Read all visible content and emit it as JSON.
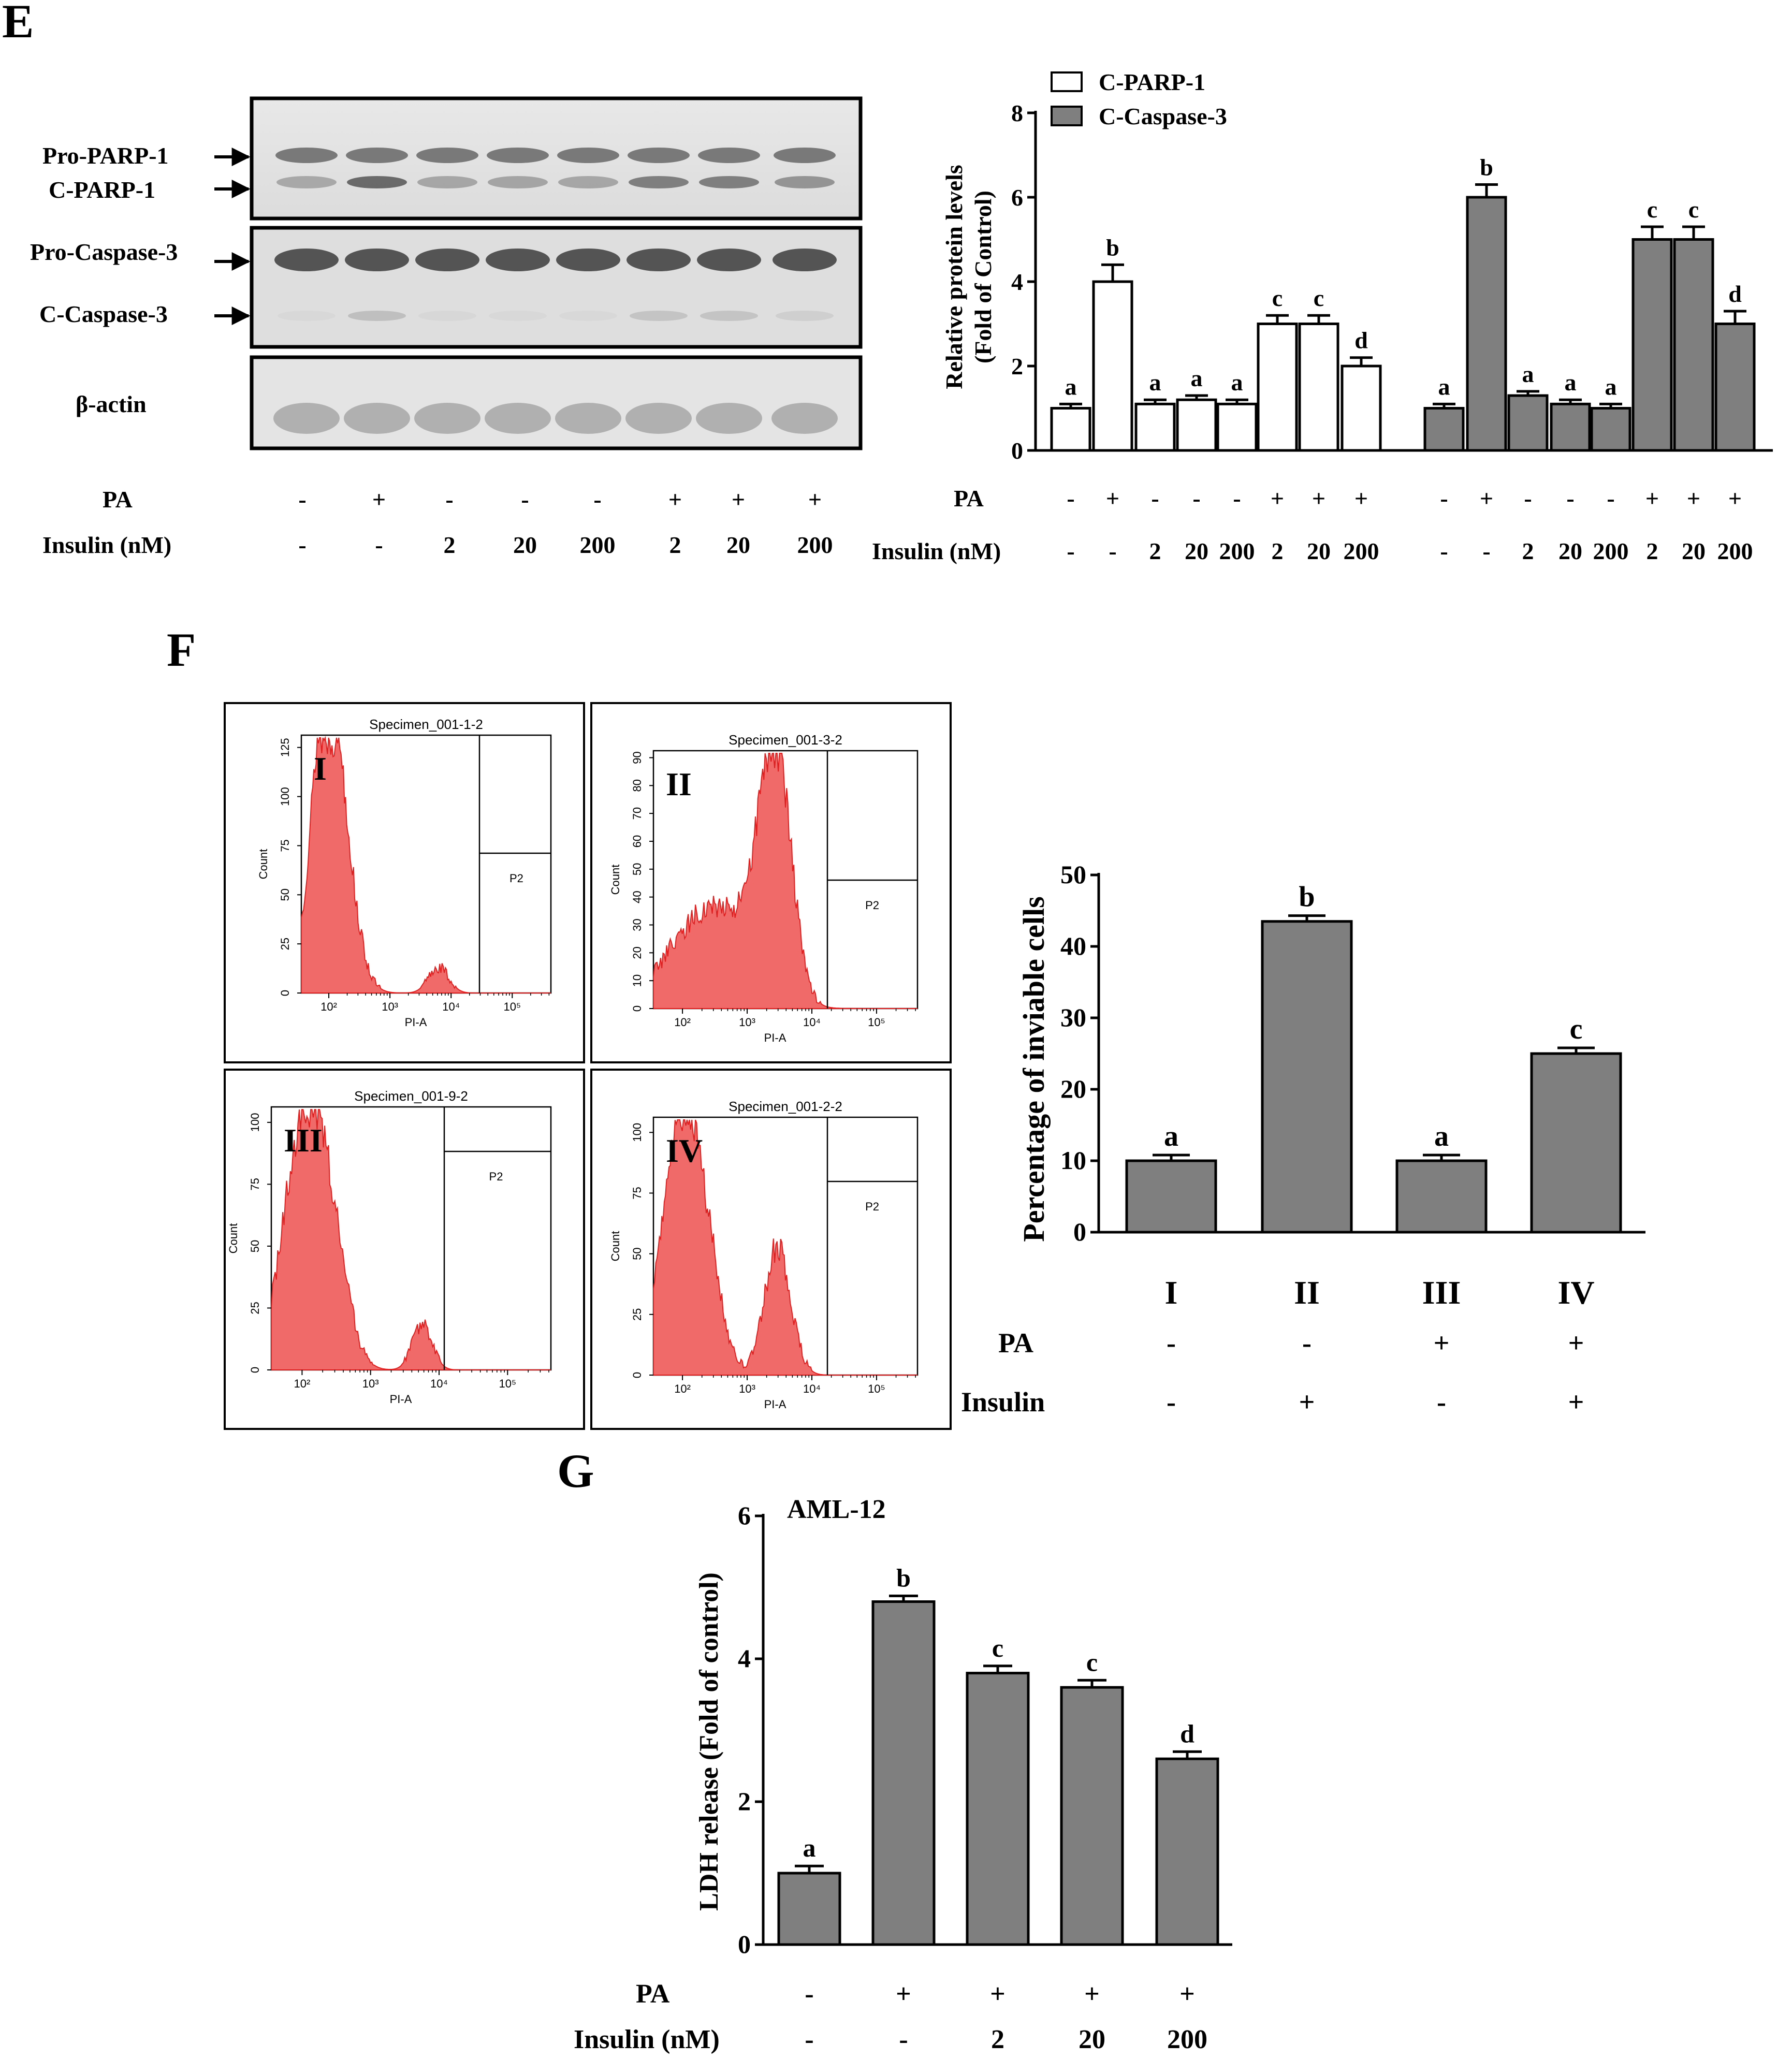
{
  "panels": {
    "E": {
      "letter": "E"
    },
    "F": {
      "letter": "F"
    },
    "G": {
      "letter": "G"
    }
  },
  "western_blot": {
    "band_labels": {
      "pro_parp": "Pro-PARP-1",
      "c_parp": "C-PARP-1",
      "pro_casp": "Pro-Caspase-3",
      "c_casp": "C-Caspase-3",
      "actin": "β-actin"
    },
    "row_labels": {
      "pa": "PA",
      "insulin": "Insulin (nM)"
    },
    "pa": [
      "-",
      "+",
      "-",
      "-",
      "-",
      "+",
      "+",
      "+"
    ],
    "insulin": [
      "-",
      "-",
      "2",
      "20",
      "200",
      "2",
      "20",
      "200"
    ]
  },
  "flow": {
    "plots": [
      {
        "title": "Specimen_001-1-2",
        "roman": "I",
        "gate": "P2",
        "xlabel": "PI-A",
        "ylabel": "Count",
        "yticks": [
          "0",
          "25",
          "50",
          "75",
          "100",
          "125"
        ],
        "xticks": [
          "10²",
          "10³",
          "10⁴",
          "10⁵"
        ]
      },
      {
        "title": "Specimen_001-3-2",
        "roman": "II",
        "gate": "P2",
        "xlabel": "PI-A",
        "ylabel": "Count",
        "yticks": [
          "0",
          "10",
          "20",
          "30",
          "40",
          "50",
          "60",
          "70",
          "80",
          "90"
        ],
        "xticks": [
          "10²",
          "10³",
          "10⁴",
          "10⁵"
        ]
      },
      {
        "title": "Specimen_001-9-2",
        "roman": "III",
        "gate": "P2",
        "xlabel": "PI-A",
        "ylabel": "Count",
        "yticks": [
          "0",
          "25",
          "50",
          "75",
          "100"
        ],
        "xticks": [
          "10²",
          "10³",
          "10⁴",
          "10⁵"
        ]
      },
      {
        "title": "Specimen_001-2-2",
        "roman": "IV",
        "gate": "P2",
        "xlabel": "PI-A",
        "ylabel": "Count",
        "yticks": [
          "0",
          "25",
          "50",
          "75",
          "100"
        ],
        "xticks": [
          "10²",
          "10³",
          "10⁴",
          "10⁵"
        ]
      }
    ]
  },
  "colors": {
    "bar_gray": "#7f7f7f",
    "bar_white": "#ffffff",
    "histogram_red": "#f06a6a",
    "histogram_line": "#e02020"
  },
  "chart_data": [
    {
      "id": "E-chart",
      "type": "bar",
      "ylabel": "Relative protein levels (Fold of Control)",
      "ylabel_lines": [
        "Relative protein levels",
        "(Fold of Control)"
      ],
      "ylim": [
        0,
        8
      ],
      "yticks": [
        0,
        2,
        4,
        6,
        8
      ],
      "row_labels": {
        "pa": "PA",
        "insulin": "Insulin (nM)"
      },
      "categories": [
        "-/-",
        "+/-",
        "-/2",
        "-/20",
        "-/200",
        "+/2",
        "+/20",
        "+/200"
      ],
      "pa": [
        "-",
        "+",
        "-",
        "-",
        "-",
        "+",
        "+",
        "+"
      ],
      "insulin": [
        "-",
        "-",
        "2",
        "20",
        "200",
        "2",
        "20",
        "200"
      ],
      "series": [
        {
          "name": "C-PARP-1",
          "color": "#ffffff",
          "values": [
            1.0,
            4.0,
            1.1,
            1.2,
            1.1,
            3.0,
            3.0,
            2.0
          ],
          "errors": [
            0.1,
            0.4,
            0.1,
            0.1,
            0.1,
            0.2,
            0.2,
            0.2
          ],
          "letters": [
            "a",
            "b",
            "a",
            "a",
            "a",
            "c",
            "c",
            "d"
          ]
        },
        {
          "name": "C-Caspase-3",
          "color": "#7f7f7f",
          "values": [
            1.0,
            6.0,
            1.3,
            1.1,
            1.0,
            5.0,
            5.0,
            3.0
          ],
          "errors": [
            0.1,
            0.3,
            0.1,
            0.1,
            0.1,
            0.3,
            0.3,
            0.3
          ],
          "letters": [
            "a",
            "b",
            "a",
            "a",
            "a",
            "c",
            "c",
            "d"
          ]
        }
      ],
      "legend": [
        "C-PARP-1",
        "C-Caspase-3"
      ]
    },
    {
      "id": "F-chart",
      "type": "bar",
      "ylabel": "Percentage of inviable cells",
      "ylim": [
        0,
        50
      ],
      "yticks": [
        0,
        10,
        20,
        30,
        40,
        50
      ],
      "categories": [
        "I",
        "II",
        "III",
        "IV"
      ],
      "row_labels": {
        "pa": "PA",
        "insulin": "Insulin"
      },
      "pa": [
        "-",
        "-",
        "+",
        "+"
      ],
      "insulin": [
        "-",
        "+",
        "-",
        "+"
      ],
      "values": [
        10,
        43.5,
        10,
        25
      ],
      "errors": [
        0.8,
        0.8,
        0.8,
        0.8
      ],
      "letters": [
        "a",
        "b",
        "a",
        "c"
      ],
      "color": "#7f7f7f"
    },
    {
      "id": "G-chart",
      "type": "bar",
      "title": "AML-12",
      "ylabel": "LDH release (Fold of control)",
      "ylim": [
        0,
        6
      ],
      "yticks": [
        0,
        2,
        4,
        6
      ],
      "categories": [
        "-/-",
        "+/-",
        "+/2",
        "+/20",
        "+/200"
      ],
      "row_labels": {
        "pa": "PA",
        "insulin": "Insulin (nM)"
      },
      "pa": [
        "-",
        "+",
        "+",
        "+",
        "+"
      ],
      "insulin": [
        "-",
        "-",
        "2",
        "20",
        "200"
      ],
      "values": [
        1.0,
        4.8,
        3.8,
        3.6,
        2.6
      ],
      "errors": [
        0.1,
        0.08,
        0.1,
        0.1,
        0.1
      ],
      "letters": [
        "a",
        "b",
        "c",
        "c",
        "d"
      ],
      "color": "#7f7f7f"
    }
  ]
}
